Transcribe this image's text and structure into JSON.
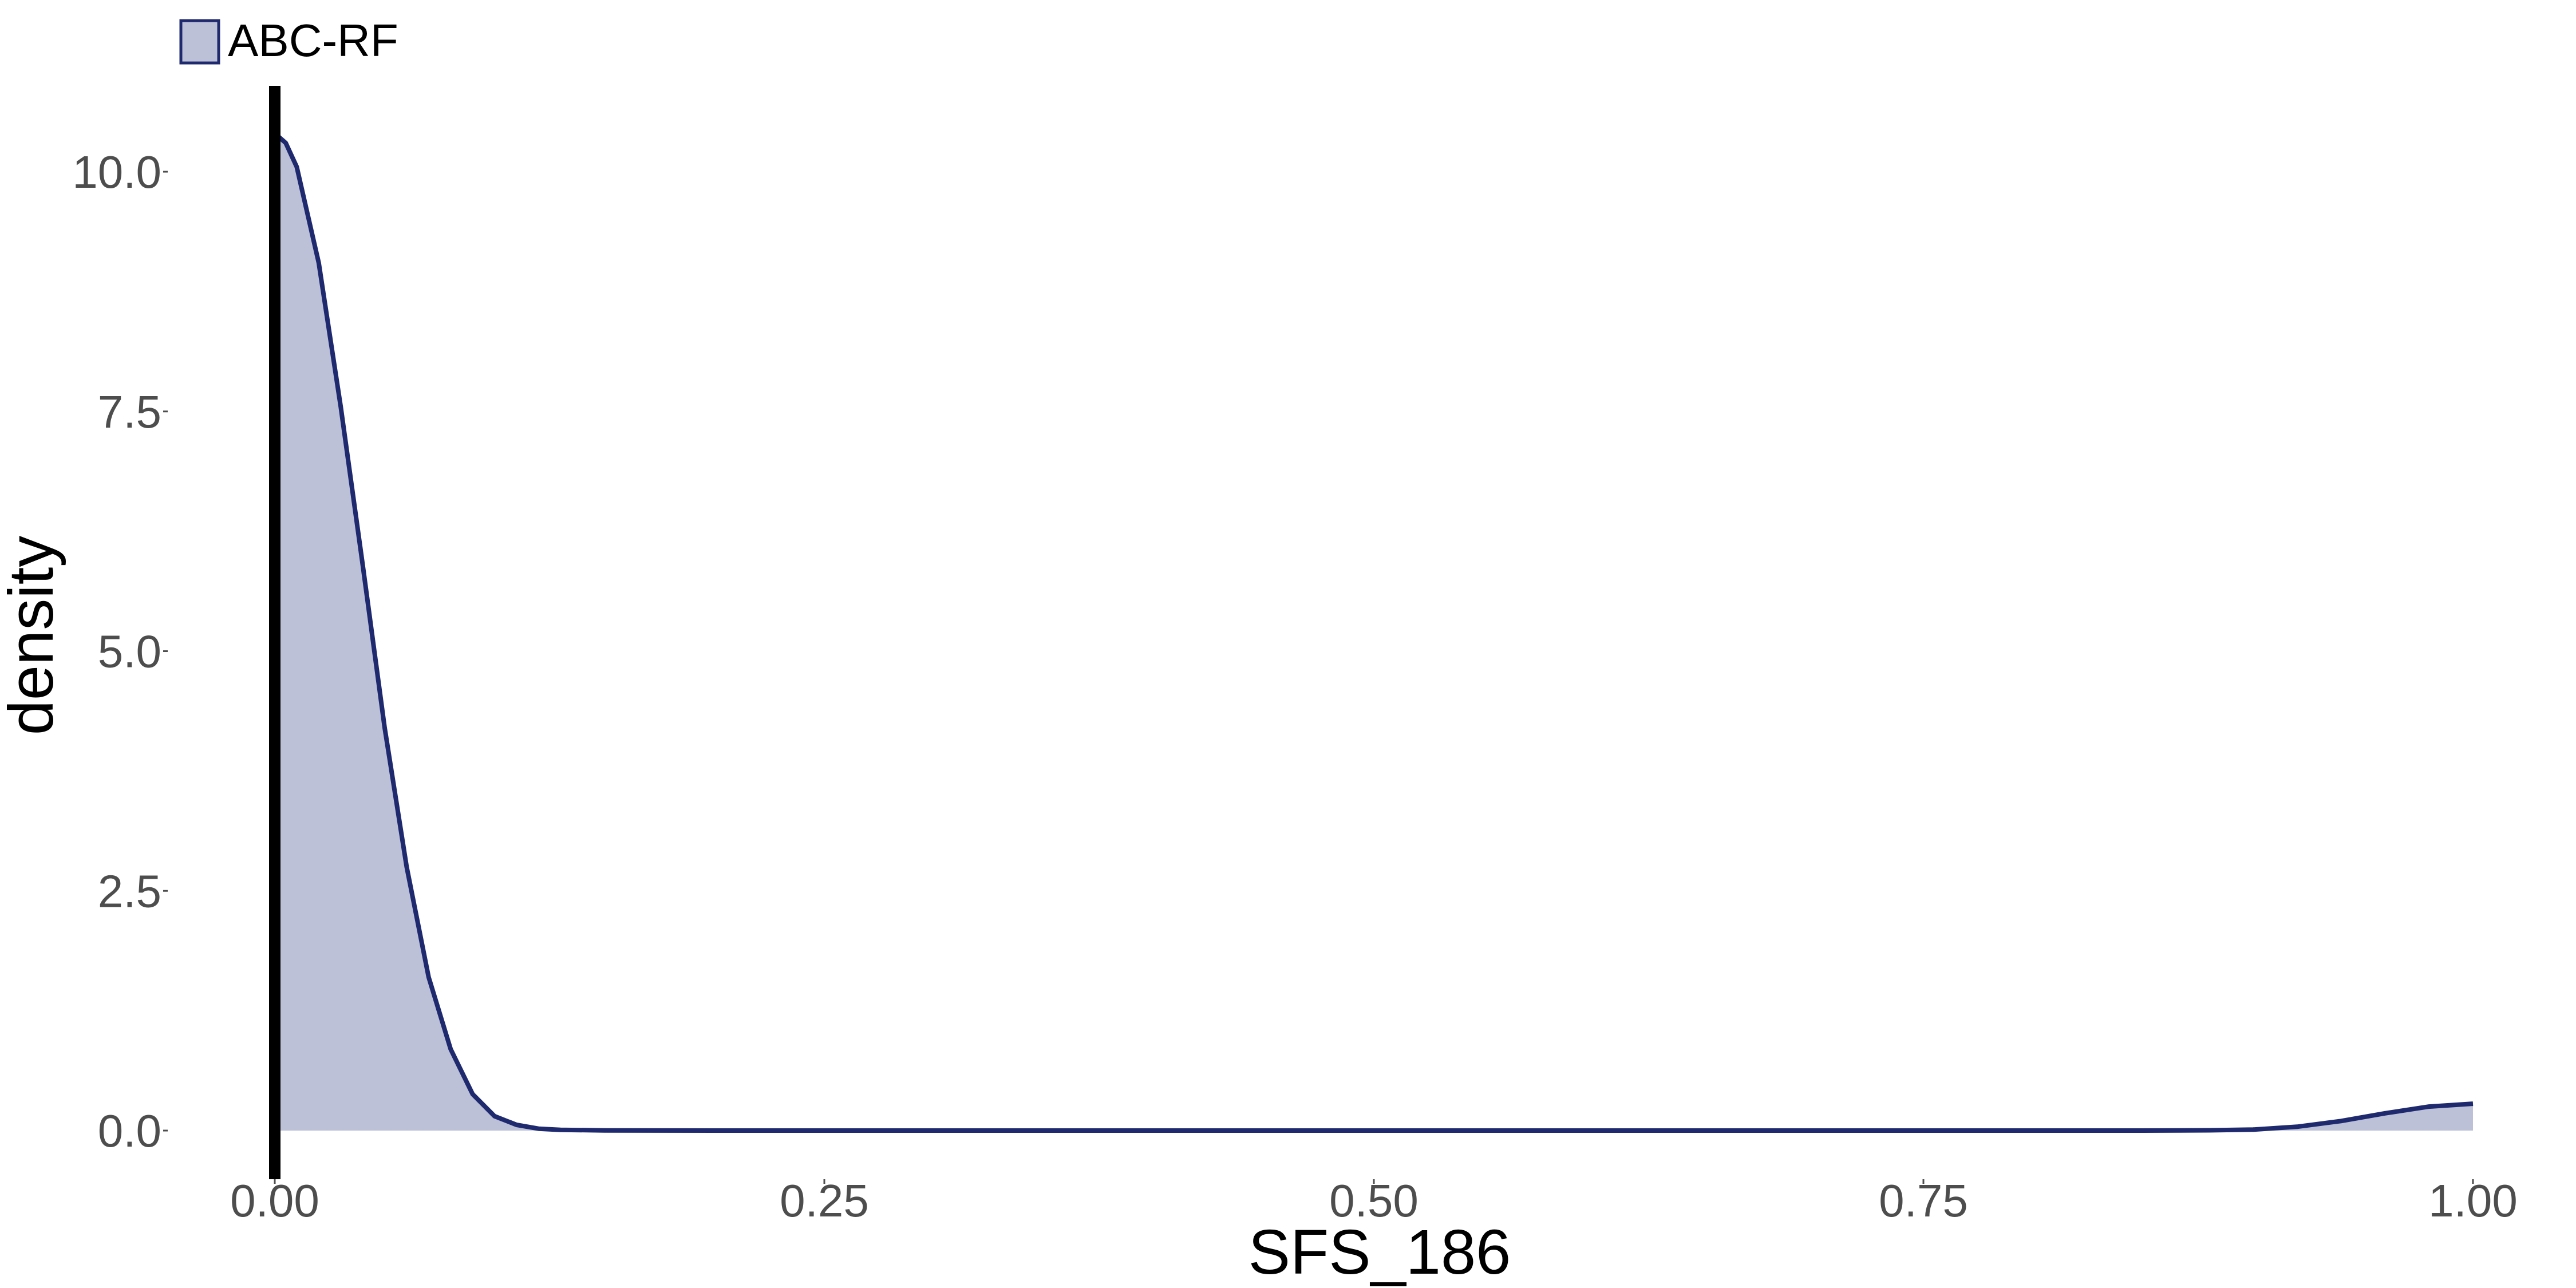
{
  "chart_data": {
    "type": "area",
    "title": "",
    "xlabel": "SFS_186",
    "ylabel": "density",
    "xlim": [
      0,
      1
    ],
    "ylim": [
      0,
      10.5
    ],
    "x_ticks": [
      0,
      0.25,
      0.5,
      0.75,
      1
    ],
    "x_tick_labels": [
      "0.00",
      "0.25",
      "0.50",
      "0.75",
      "1.00"
    ],
    "y_ticks": [
      0,
      2.5,
      5,
      7.5,
      10
    ],
    "y_tick_labels": [
      "0.0",
      "2.5",
      "5.0",
      "7.5",
      "10.0"
    ],
    "grid": false,
    "legend_position": "top-left",
    "reference_line": {
      "x": 0,
      "color": "#000000"
    },
    "series": [
      {
        "name": "ABC-RF",
        "line_color": "#1f2a6e",
        "fill_color": "#bcc1d8",
        "x": [
          0,
          0.005,
          0.01,
          0.02,
          0.03,
          0.04,
          0.05,
          0.06,
          0.07,
          0.08,
          0.09,
          0.1,
          0.11,
          0.12,
          0.13,
          0.15,
          0.2,
          0.3,
          0.4,
          0.5,
          0.6,
          0.7,
          0.8,
          0.85,
          0.88,
          0.9,
          0.92,
          0.94,
          0.96,
          0.98,
          1.0
        ],
        "y": [
          10.4,
          10.3,
          10.05,
          9.05,
          7.55,
          5.9,
          4.2,
          2.75,
          1.6,
          0.85,
          0.38,
          0.15,
          0.06,
          0.02,
          0.008,
          0.002,
          0.0,
          0.0,
          0.0,
          0.0,
          0.0,
          0.0,
          0.0,
          0.0,
          0.003,
          0.01,
          0.04,
          0.1,
          0.18,
          0.25,
          0.28
        ]
      }
    ]
  }
}
